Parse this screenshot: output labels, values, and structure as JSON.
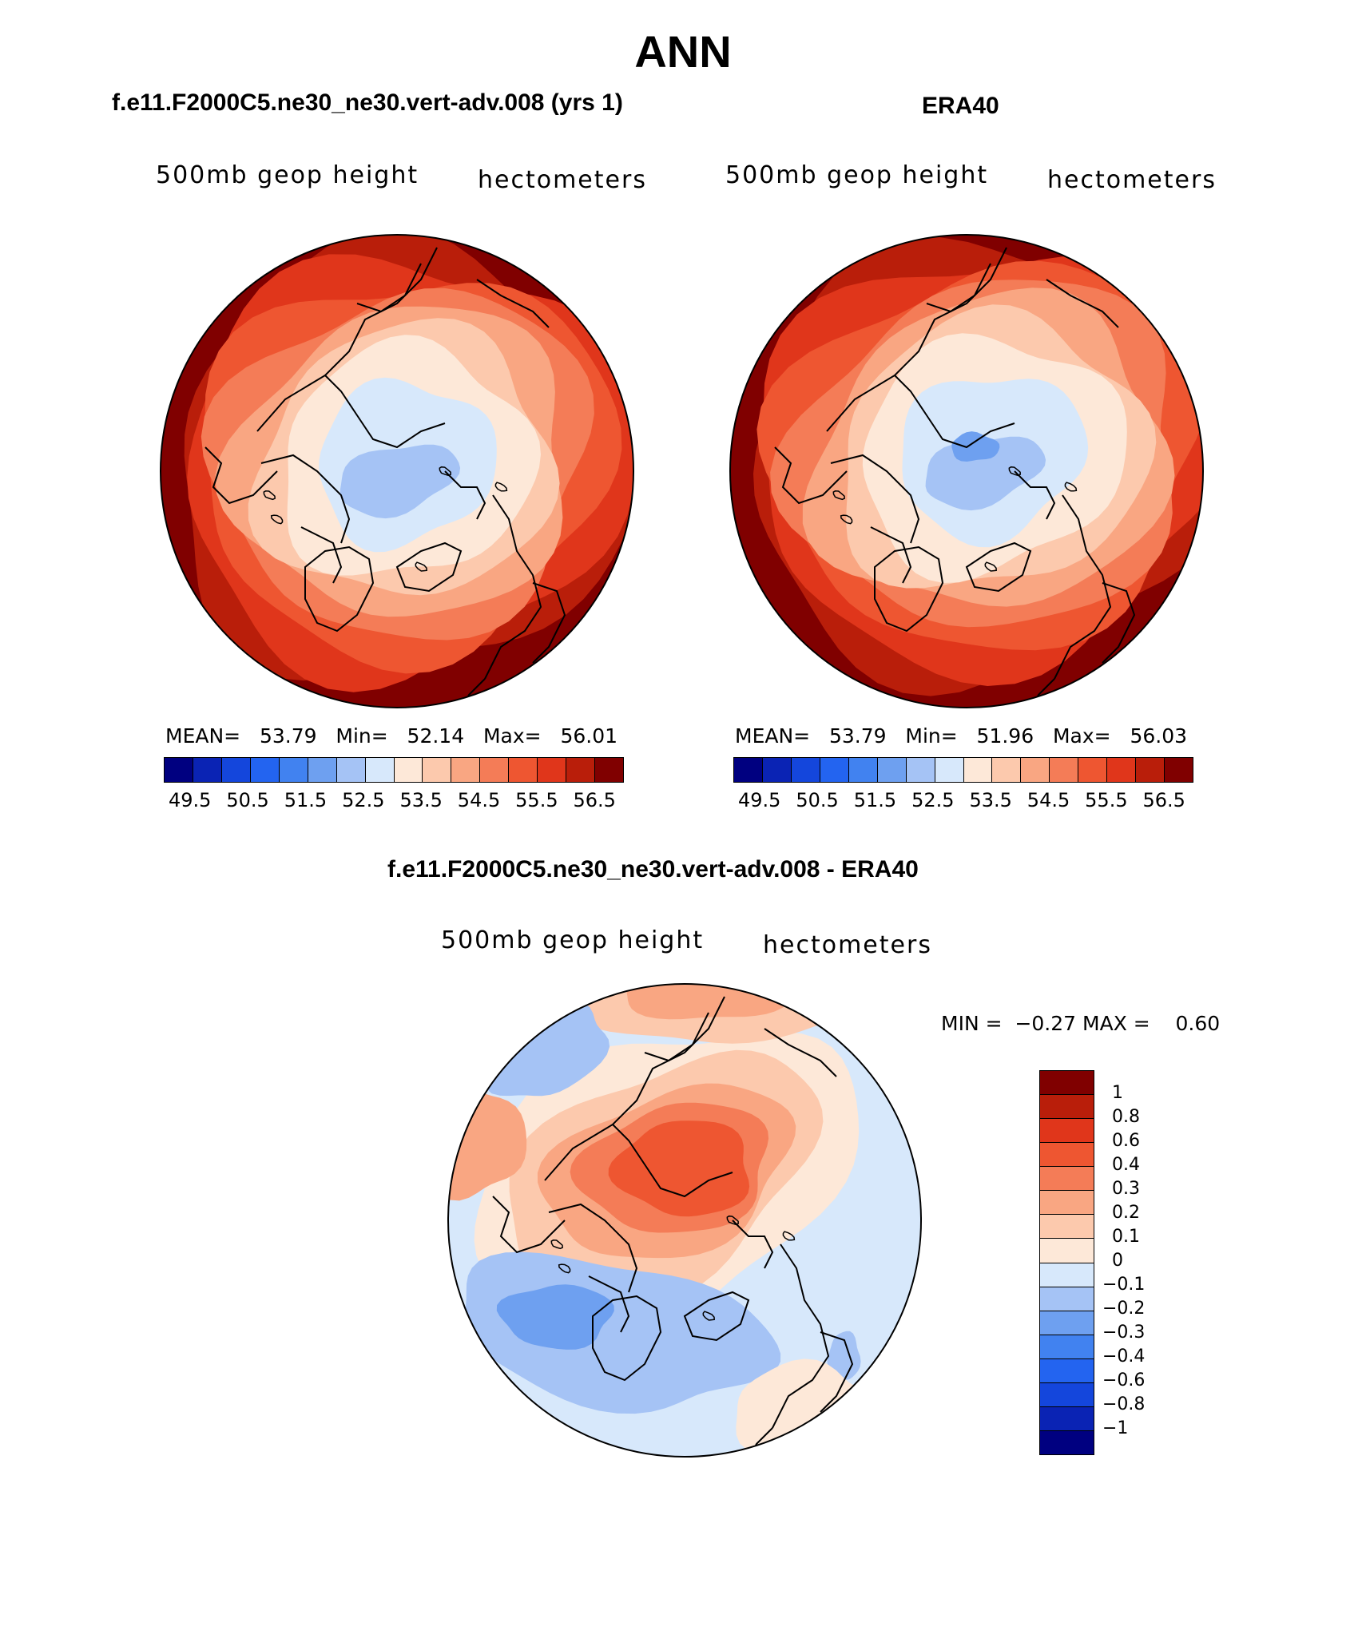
{
  "title": "ANN",
  "panels": [
    {
      "title": "f.e11.F2000C5.ne30_ne30.vert-adv.008 (yrs 1)",
      "variable": "500mb geop height",
      "units": "hectometers",
      "stats": {
        "mean_label": "MEAN=",
        "mean": "53.79",
        "min_label": "Min=",
        "min": "52.14",
        "max_label": "Max=",
        "max": "56.01"
      }
    },
    {
      "title": "ERA40",
      "variable": "500mb geop height",
      "units": "hectometers",
      "stats": {
        "mean_label": "MEAN=",
        "mean": "53.79",
        "min_label": "Min=",
        "min": "51.96",
        "max_label": "Max=",
        "max": "56.03"
      }
    }
  ],
  "diff_panel": {
    "title": "f.e11.F2000C5.ne30_ne30.vert-adv.008 - ERA40",
    "variable": "500mb geop height",
    "units": "hectometers",
    "min_label": "MIN =",
    "min": "−0.27",
    "max_label": "MAX =",
    "max": "0.60"
  },
  "chart_data": [
    {
      "type": "heatmap",
      "projection": "north-polar-stereographic",
      "title": "f.e11.F2000C5.ne30_ne30.vert-adv.008 (yrs 1)",
      "variable": "500mb geop height",
      "units": "hectometers",
      "mean": 53.79,
      "min": 52.14,
      "max": 56.01,
      "colorbar_ticks": [
        "49.5",
        "50.5",
        "51.5",
        "52.5",
        "53.5",
        "54.5",
        "55.5",
        "56.5"
      ]
    },
    {
      "type": "heatmap",
      "projection": "north-polar-stereographic",
      "title": "ERA40",
      "variable": "500mb geop height",
      "units": "hectometers",
      "mean": 53.79,
      "min": 51.96,
      "max": 56.03,
      "colorbar_ticks": [
        "49.5",
        "50.5",
        "51.5",
        "52.5",
        "53.5",
        "54.5",
        "55.5",
        "56.5"
      ]
    },
    {
      "type": "heatmap",
      "projection": "north-polar-stereographic",
      "title": "f.e11.F2000C5.ne30_ne30.vert-adv.008 - ERA40",
      "variable": "500mb geop height",
      "units": "hectometers",
      "min": -0.27,
      "max": 0.6,
      "colorbar_levels": [
        "1",
        "0.8",
        "0.6",
        "0.4",
        "0.3",
        "0.2",
        "0.1",
        "0",
        "−0.1",
        "−0.2",
        "−0.3",
        "−0.4",
        "−0.6",
        "−0.8",
        "−1"
      ]
    }
  ],
  "colors": {
    "field_scale": [
      "#000080",
      "#0a23b4",
      "#1446dc",
      "#2364f0",
      "#4182f0",
      "#6ea0f0",
      "#a5c3f5",
      "#d7e8fb",
      "#fde8d8",
      "#fcc9ad",
      "#f9a682",
      "#f47c57",
      "#ee5631",
      "#e0361b",
      "#b91e0a",
      "#800000"
    ],
    "diff_scale": [
      "#800000",
      "#b91e0a",
      "#e0361b",
      "#ee5631",
      "#f47c57",
      "#f9a682",
      "#fcc9ad",
      "#fde8d8",
      "#d7e8fb",
      "#a5c3f5",
      "#6ea0f0",
      "#4182f0",
      "#2364f0",
      "#1446dc",
      "#0a23b4",
      "#000080"
    ]
  }
}
